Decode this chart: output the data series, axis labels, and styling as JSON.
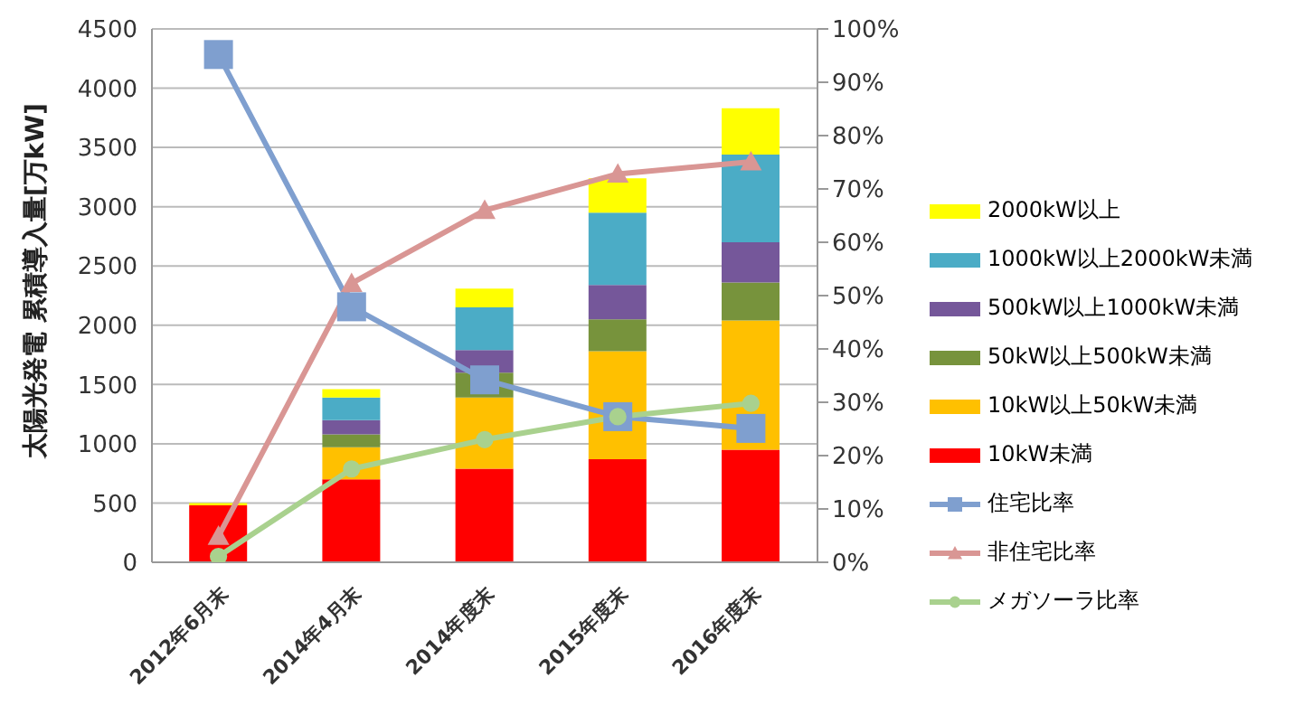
{
  "chart_data": {
    "type": "bar",
    "stacked": true,
    "ylabel": "太陽光発電 累積導入量[万kW]",
    "categories": [
      "2012年6月末",
      "2014年4月末",
      "2014年度末",
      "2015年度末",
      "2016年度末"
    ],
    "series": [
      {
        "name": "10kW未満",
        "color": "#ff0000",
        "values": [
          480,
          700,
          790,
          870,
          950
        ]
      },
      {
        "name": "10kW以上50kW未満",
        "color": "#ffc000",
        "values": [
          0,
          270,
          600,
          910,
          1090
        ]
      },
      {
        "name": "50kW以上500kW未満",
        "color": "#77933c",
        "values": [
          0,
          110,
          210,
          270,
          320
        ]
      },
      {
        "name": "500kW以上1000kW未満",
        "color": "#75579a",
        "values": [
          0,
          120,
          190,
          290,
          340
        ]
      },
      {
        "name": "1000kW以上2000kW未満",
        "color": "#4bacc6",
        "values": [
          0,
          190,
          360,
          610,
          740
        ]
      },
      {
        "name": "2000kW以上",
        "color": "#ffff00",
        "values": [
          20,
          70,
          160,
          290,
          390
        ]
      },
      {
        "name": "住宅比率",
        "type": "line",
        "axis": "y2",
        "marker": "square",
        "color": "#7f9fcf",
        "values": [
          95.2,
          47.9,
          34.2,
          27.3,
          25.1
        ]
      },
      {
        "name": "非住宅比率",
        "type": "line",
        "axis": "y2",
        "marker": "triangle",
        "color": "#d99694",
        "values": [
          4.9,
          52.3,
          66.0,
          72.8,
          75.1
        ]
      },
      {
        "name": "メガソーラ比率",
        "type": "line",
        "axis": "y2",
        "marker": "circle",
        "color": "#a9d18e",
        "values": [
          1.1,
          17.5,
          23.0,
          27.3,
          29.8
        ]
      }
    ],
    "ylim": [
      0,
      4500
    ],
    "yticks": [
      0,
      500,
      1000,
      1500,
      2000,
      2500,
      3000,
      3500,
      4000,
      4500
    ],
    "y2lim": [
      0,
      100
    ],
    "y2ticks": [
      {
        "value": 0,
        "label": "0%"
      },
      {
        "value": 10,
        "label": "10%"
      },
      {
        "value": 20,
        "label": "20%"
      },
      {
        "value": 30,
        "label": "30%"
      },
      {
        "value": 40,
        "label": "40%"
      },
      {
        "value": 50,
        "label": "50%"
      },
      {
        "value": 60,
        "label": "60%"
      },
      {
        "value": 70,
        "label": "70%"
      },
      {
        "value": 80,
        "label": "80%"
      },
      {
        "value": 90,
        "label": "90%"
      },
      {
        "value": 100,
        "label": "100%"
      }
    ],
    "grid": "y",
    "legend": "right"
  }
}
